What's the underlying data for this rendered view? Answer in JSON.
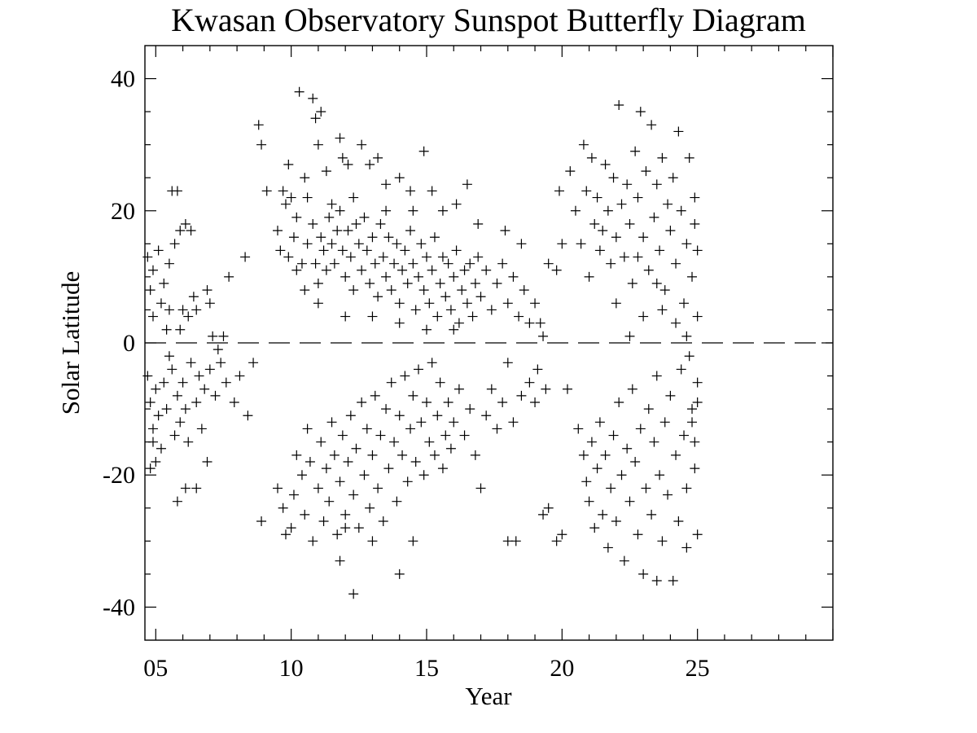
{
  "chart_data": {
    "type": "scatter",
    "title": "Kwasan Observatory Sunspot Butterfly Diagram",
    "xlabel": "Year",
    "ylabel": "Solar Latitude",
    "xlim": [
      2004.6,
      2030.0
    ],
    "ylim": [
      -45,
      45
    ],
    "xticks": [
      {
        "value": 2005,
        "label": "05"
      },
      {
        "value": 2010,
        "label": "10"
      },
      {
        "value": 2015,
        "label": "15"
      },
      {
        "value": 2020,
        "label": "20"
      },
      {
        "value": 2025,
        "label": "25"
      }
    ],
    "yticks": [
      {
        "value": 40,
        "label": "40"
      },
      {
        "value": 20,
        "label": "20"
      },
      {
        "value": 0,
        "label": "0"
      },
      {
        "value": -20,
        "label": "-20"
      },
      {
        "value": -40,
        "label": "-40"
      }
    ],
    "marker": "plus",
    "reference_line": {
      "y": 0,
      "style": "dashed"
    },
    "grid": false,
    "points": [
      [
        2004.7,
        13
      ],
      [
        2004.8,
        8
      ],
      [
        2004.9,
        11
      ],
      [
        2005.1,
        14
      ],
      [
        2005.3,
        9
      ],
      [
        2005.5,
        12
      ],
      [
        2005.6,
        23
      ],
      [
        2005.8,
        23
      ],
      [
        2005.7,
        15
      ],
      [
        2005.9,
        17
      ],
      [
        2006.1,
        18
      ],
      [
        2006.3,
        17
      ],
      [
        2006.0,
        5
      ],
      [
        2006.2,
        4
      ],
      [
        2005.4,
        2
      ],
      [
        2005.9,
        2
      ],
      [
        2006.5,
        5
      ],
      [
        2006.9,
        8
      ],
      [
        2007.0,
        6
      ],
      [
        2007.1,
        1
      ],
      [
        2007.5,
        1
      ],
      [
        2007.7,
        10
      ],
      [
        2008.3,
        13
      ],
      [
        2004.9,
        4
      ],
      [
        2005.5,
        5
      ],
      [
        2006.4,
        7
      ],
      [
        2005.2,
        6
      ],
      [
        2004.7,
        -5
      ],
      [
        2004.8,
        -9
      ],
      [
        2004.9,
        -13
      ],
      [
        2005.0,
        -7
      ],
      [
        2005.1,
        -11
      ],
      [
        2005.2,
        -16
      ],
      [
        2005.3,
        -6
      ],
      [
        2005.4,
        -10
      ],
      [
        2005.6,
        -4
      ],
      [
        2005.7,
        -14
      ],
      [
        2005.8,
        -8
      ],
      [
        2005.9,
        -12
      ],
      [
        2006.0,
        -6
      ],
      [
        2006.1,
        -10
      ],
      [
        2006.2,
        -15
      ],
      [
        2006.3,
        -3
      ],
      [
        2006.5,
        -9
      ],
      [
        2006.6,
        -5
      ],
      [
        2006.8,
        -7
      ],
      [
        2007.0,
        -4
      ],
      [
        2007.2,
        -8
      ],
      [
        2007.4,
        -3
      ],
      [
        2007.6,
        -6
      ],
      [
        2007.9,
        -9
      ],
      [
        2008.1,
        -5
      ],
      [
        2008.4,
        -11
      ],
      [
        2008.6,
        -3
      ],
      [
        2005.0,
        -18
      ],
      [
        2004.8,
        -19
      ],
      [
        2005.8,
        -24
      ],
      [
        2006.1,
        -22
      ],
      [
        2006.5,
        -22
      ],
      [
        2006.9,
        -18
      ],
      [
        2005.5,
        -2
      ],
      [
        2004.9,
        -15
      ],
      [
        2006.7,
        -13
      ],
      [
        2007.3,
        -1
      ],
      [
        2008.8,
        33
      ],
      [
        2008.9,
        30
      ],
      [
        2009.1,
        23
      ],
      [
        2009.5,
        17
      ],
      [
        2009.7,
        23
      ],
      [
        2009.8,
        21
      ],
      [
        2009.9,
        27
      ],
      [
        2010.0,
        22
      ],
      [
        2010.2,
        19
      ],
      [
        2010.3,
        38
      ],
      [
        2010.5,
        25
      ],
      [
        2010.6,
        22
      ],
      [
        2010.8,
        37
      ],
      [
        2010.9,
        34
      ],
      [
        2011.0,
        30
      ],
      [
        2011.1,
        35
      ],
      [
        2011.3,
        26
      ],
      [
        2011.5,
        21
      ],
      [
        2011.8,
        31
      ],
      [
        2011.9,
        28
      ],
      [
        2012.1,
        27
      ],
      [
        2012.3,
        22
      ],
      [
        2012.6,
        30
      ],
      [
        2012.9,
        27
      ],
      [
        2013.2,
        28
      ],
      [
        2013.5,
        24
      ],
      [
        2014.0,
        25
      ],
      [
        2014.4,
        23
      ],
      [
        2014.9,
        29
      ],
      [
        2015.2,
        23
      ],
      [
        2015.6,
        20
      ],
      [
        2016.1,
        21
      ],
      [
        2016.5,
        24
      ],
      [
        2016.9,
        18
      ],
      [
        2009.6,
        14
      ],
      [
        2009.9,
        13
      ],
      [
        2010.1,
        16
      ],
      [
        2010.2,
        11
      ],
      [
        2010.4,
        12
      ],
      [
        2010.6,
        15
      ],
      [
        2010.8,
        18
      ],
      [
        2010.9,
        12
      ],
      [
        2011.0,
        9
      ],
      [
        2011.1,
        16
      ],
      [
        2011.2,
        14
      ],
      [
        2011.3,
        11
      ],
      [
        2011.4,
        19
      ],
      [
        2011.5,
        15
      ],
      [
        2011.6,
        12
      ],
      [
        2011.7,
        17
      ],
      [
        2011.8,
        20
      ],
      [
        2011.9,
        14
      ],
      [
        2012.0,
        10
      ],
      [
        2012.1,
        17
      ],
      [
        2012.2,
        13
      ],
      [
        2012.3,
        8
      ],
      [
        2012.4,
        18
      ],
      [
        2012.5,
        15
      ],
      [
        2012.6,
        11
      ],
      [
        2012.7,
        19
      ],
      [
        2012.8,
        14
      ],
      [
        2012.9,
        9
      ],
      [
        2013.0,
        16
      ],
      [
        2013.1,
        12
      ],
      [
        2013.2,
        7
      ],
      [
        2013.3,
        18
      ],
      [
        2013.4,
        13
      ],
      [
        2013.5,
        10
      ],
      [
        2013.6,
        16
      ],
      [
        2013.7,
        8
      ],
      [
        2013.8,
        12
      ],
      [
        2013.9,
        15
      ],
      [
        2014.0,
        6
      ],
      [
        2014.1,
        11
      ],
      [
        2014.2,
        14
      ],
      [
        2014.3,
        9
      ],
      [
        2014.4,
        17
      ],
      [
        2014.5,
        12
      ],
      [
        2014.6,
        5
      ],
      [
        2014.7,
        10
      ],
      [
        2014.8,
        15
      ],
      [
        2014.9,
        8
      ],
      [
        2015.0,
        13
      ],
      [
        2015.1,
        6
      ],
      [
        2015.2,
        11
      ],
      [
        2015.3,
        16
      ],
      [
        2015.4,
        4
      ],
      [
        2015.5,
        9
      ],
      [
        2015.6,
        13
      ],
      [
        2015.7,
        7
      ],
      [
        2015.8,
        12
      ],
      [
        2015.9,
        5
      ],
      [
        2016.0,
        10
      ],
      [
        2016.1,
        14
      ],
      [
        2016.2,
        3
      ],
      [
        2016.3,
        8
      ],
      [
        2016.4,
        11
      ],
      [
        2016.5,
        6
      ],
      [
        2016.6,
        12
      ],
      [
        2016.7,
        4
      ],
      [
        2016.8,
        9
      ],
      [
        2016.9,
        13
      ],
      [
        2017.0,
        7
      ],
      [
        2017.2,
        11
      ],
      [
        2017.4,
        5
      ],
      [
        2017.6,
        9
      ],
      [
        2017.8,
        12
      ],
      [
        2018.0,
        6
      ],
      [
        2018.2,
        10
      ],
      [
        2018.4,
        4
      ],
      [
        2018.6,
        8
      ],
      [
        2018.8,
        3
      ],
      [
        2019.0,
        6
      ],
      [
        2019.2,
        3
      ],
      [
        2019.5,
        12
      ],
      [
        2019.8,
        11
      ],
      [
        2019.3,
        1
      ],
      [
        2018.5,
        15
      ],
      [
        2017.9,
        17
      ],
      [
        2012.0,
        4
      ],
      [
        2013.0,
        4
      ],
      [
        2014.0,
        3
      ],
      [
        2015.0,
        2
      ],
      [
        2016.0,
        2
      ],
      [
        2013.5,
        20
      ],
      [
        2014.5,
        20
      ],
      [
        2011.0,
        6
      ],
      [
        2010.5,
        8
      ],
      [
        2008.9,
        -27
      ],
      [
        2009.5,
        -22
      ],
      [
        2009.7,
        -25
      ],
      [
        2009.8,
        -29
      ],
      [
        2010.0,
        -28
      ],
      [
        2010.1,
        -23
      ],
      [
        2010.2,
        -17
      ],
      [
        2010.4,
        -20
      ],
      [
        2010.5,
        -26
      ],
      [
        2010.6,
        -13
      ],
      [
        2010.7,
        -18
      ],
      [
        2010.8,
        -30
      ],
      [
        2011.0,
        -22
      ],
      [
        2011.1,
        -15
      ],
      [
        2011.2,
        -27
      ],
      [
        2011.3,
        -19
      ],
      [
        2011.4,
        -24
      ],
      [
        2011.5,
        -12
      ],
      [
        2011.6,
        -17
      ],
      [
        2011.7,
        -29
      ],
      [
        2011.8,
        -21
      ],
      [
        2011.9,
        -14
      ],
      [
        2012.0,
        -26
      ],
      [
        2012.1,
        -18
      ],
      [
        2012.2,
        -11
      ],
      [
        2012.3,
        -23
      ],
      [
        2012.4,
        -16
      ],
      [
        2012.5,
        -28
      ],
      [
        2012.6,
        -9
      ],
      [
        2012.7,
        -20
      ],
      [
        2012.8,
        -13
      ],
      [
        2012.9,
        -25
      ],
      [
        2013.0,
        -17
      ],
      [
        2013.1,
        -8
      ],
      [
        2013.2,
        -22
      ],
      [
        2013.3,
        -14
      ],
      [
        2013.4,
        -27
      ],
      [
        2013.5,
        -10
      ],
      [
        2013.6,
        -19
      ],
      [
        2013.7,
        -6
      ],
      [
        2013.8,
        -15
      ],
      [
        2013.9,
        -24
      ],
      [
        2014.0,
        -11
      ],
      [
        2014.1,
        -17
      ],
      [
        2014.2,
        -5
      ],
      [
        2014.3,
        -21
      ],
      [
        2014.4,
        -13
      ],
      [
        2014.5,
        -8
      ],
      [
        2014.6,
        -18
      ],
      [
        2014.7,
        -4
      ],
      [
        2014.8,
        -12
      ],
      [
        2014.9,
        -20
      ],
      [
        2015.0,
        -9
      ],
      [
        2015.1,
        -15
      ],
      [
        2015.2,
        -3
      ],
      [
        2015.3,
        -17
      ],
      [
        2015.4,
        -11
      ],
      [
        2015.5,
        -6
      ],
      [
        2015.6,
        -19
      ],
      [
        2015.7,
        -14
      ],
      [
        2015.8,
        -9
      ],
      [
        2015.9,
        -16
      ],
      [
        2016.0,
        -12
      ],
      [
        2016.2,
        -7
      ],
      [
        2016.4,
        -14
      ],
      [
        2016.6,
        -10
      ],
      [
        2016.8,
        -17
      ],
      [
        2017.0,
        -22
      ],
      [
        2017.2,
        -11
      ],
      [
        2017.4,
        -7
      ],
      [
        2017.6,
        -13
      ],
      [
        2017.8,
        -9
      ],
      [
        2018.0,
        -3
      ],
      [
        2018.2,
        -12
      ],
      [
        2018.5,
        -8
      ],
      [
        2018.8,
        -6
      ],
      [
        2019.0,
        -9
      ],
      [
        2019.1,
        -4
      ],
      [
        2018.0,
        -30
      ],
      [
        2018.3,
        -30
      ],
      [
        2011.8,
        -33
      ],
      [
        2012.3,
        -38
      ],
      [
        2014.0,
        -35
      ],
      [
        2014.5,
        -30
      ],
      [
        2019.3,
        -26
      ],
      [
        2019.5,
        -25
      ],
      [
        2013.0,
        -30
      ],
      [
        2012.0,
        -28
      ],
      [
        2019.9,
        23
      ],
      [
        2020.0,
        15
      ],
      [
        2020.3,
        26
      ],
      [
        2020.5,
        20
      ],
      [
        2020.7,
        15
      ],
      [
        2020.8,
        30
      ],
      [
        2020.9,
        23
      ],
      [
        2021.0,
        10
      ],
      [
        2021.1,
        28
      ],
      [
        2021.2,
        18
      ],
      [
        2021.3,
        22
      ],
      [
        2021.4,
        14
      ],
      [
        2021.5,
        17
      ],
      [
        2021.6,
        27
      ],
      [
        2021.7,
        20
      ],
      [
        2021.8,
        12
      ],
      [
        2021.9,
        25
      ],
      [
        2022.0,
        16
      ],
      [
        2022.1,
        36
      ],
      [
        2022.2,
        21
      ],
      [
        2022.3,
        13
      ],
      [
        2022.4,
        24
      ],
      [
        2022.5,
        18
      ],
      [
        2022.6,
        9
      ],
      [
        2022.7,
        29
      ],
      [
        2022.8,
        22
      ],
      [
        2022.9,
        35
      ],
      [
        2023.0,
        16
      ],
      [
        2023.1,
        26
      ],
      [
        2023.2,
        11
      ],
      [
        2023.3,
        33
      ],
      [
        2023.4,
        19
      ],
      [
        2023.5,
        24
      ],
      [
        2023.6,
        14
      ],
      [
        2023.7,
        28
      ],
      [
        2023.8,
        8
      ],
      [
        2023.9,
        21
      ],
      [
        2024.0,
        17
      ],
      [
        2024.1,
        25
      ],
      [
        2024.2,
        12
      ],
      [
        2024.3,
        32
      ],
      [
        2024.4,
        20
      ],
      [
        2024.5,
        6
      ],
      [
        2024.6,
        15
      ],
      [
        2024.7,
        28
      ],
      [
        2024.8,
        10
      ],
      [
        2024.9,
        22
      ],
      [
        2025.0,
        14
      ],
      [
        2025.0,
        4
      ],
      [
        2024.6,
        1
      ],
      [
        2024.2,
        3
      ],
      [
        2023.7,
        5
      ],
      [
        2022.5,
        1
      ],
      [
        2022.0,
        6
      ],
      [
        2023.0,
        4
      ],
      [
        2024.9,
        18
      ],
      [
        2023.5,
        9
      ],
      [
        2022.8,
        13
      ],
      [
        2019.4,
        -7
      ],
      [
        2019.8,
        -30
      ],
      [
        2020.0,
        -29
      ],
      [
        2020.2,
        -7
      ],
      [
        2020.6,
        -13
      ],
      [
        2020.8,
        -17
      ],
      [
        2020.9,
        -21
      ],
      [
        2021.0,
        -24
      ],
      [
        2021.1,
        -15
      ],
      [
        2021.2,
        -28
      ],
      [
        2021.3,
        -19
      ],
      [
        2021.4,
        -12
      ],
      [
        2021.5,
        -26
      ],
      [
        2021.6,
        -17
      ],
      [
        2021.7,
        -31
      ],
      [
        2021.8,
        -22
      ],
      [
        2021.9,
        -14
      ],
      [
        2022.0,
        -27
      ],
      [
        2022.1,
        -9
      ],
      [
        2022.2,
        -20
      ],
      [
        2022.3,
        -33
      ],
      [
        2022.4,
        -16
      ],
      [
        2022.5,
        -24
      ],
      [
        2022.6,
        -7
      ],
      [
        2022.7,
        -18
      ],
      [
        2022.8,
        -29
      ],
      [
        2022.9,
        -13
      ],
      [
        2023.0,
        -35
      ],
      [
        2023.1,
        -22
      ],
      [
        2023.2,
        -10
      ],
      [
        2023.3,
        -26
      ],
      [
        2023.4,
        -15
      ],
      [
        2023.5,
        -5
      ],
      [
        2023.6,
        -20
      ],
      [
        2023.7,
        -30
      ],
      [
        2023.8,
        -12
      ],
      [
        2023.9,
        -23
      ],
      [
        2024.0,
        -8
      ],
      [
        2024.1,
        -36
      ],
      [
        2024.2,
        -17
      ],
      [
        2024.3,
        -27
      ],
      [
        2024.4,
        -4
      ],
      [
        2024.5,
        -14
      ],
      [
        2024.6,
        -22
      ],
      [
        2024.7,
        -2
      ],
      [
        2024.8,
        -10
      ],
      [
        2024.9,
        -19
      ],
      [
        2025.0,
        -6
      ],
      [
        2025.0,
        -29
      ],
      [
        2024.6,
        -31
      ],
      [
        2023.5,
        -36
      ],
      [
        2024.8,
        -12
      ],
      [
        2024.9,
        -15
      ],
      [
        2025.0,
        -9
      ]
    ]
  }
}
